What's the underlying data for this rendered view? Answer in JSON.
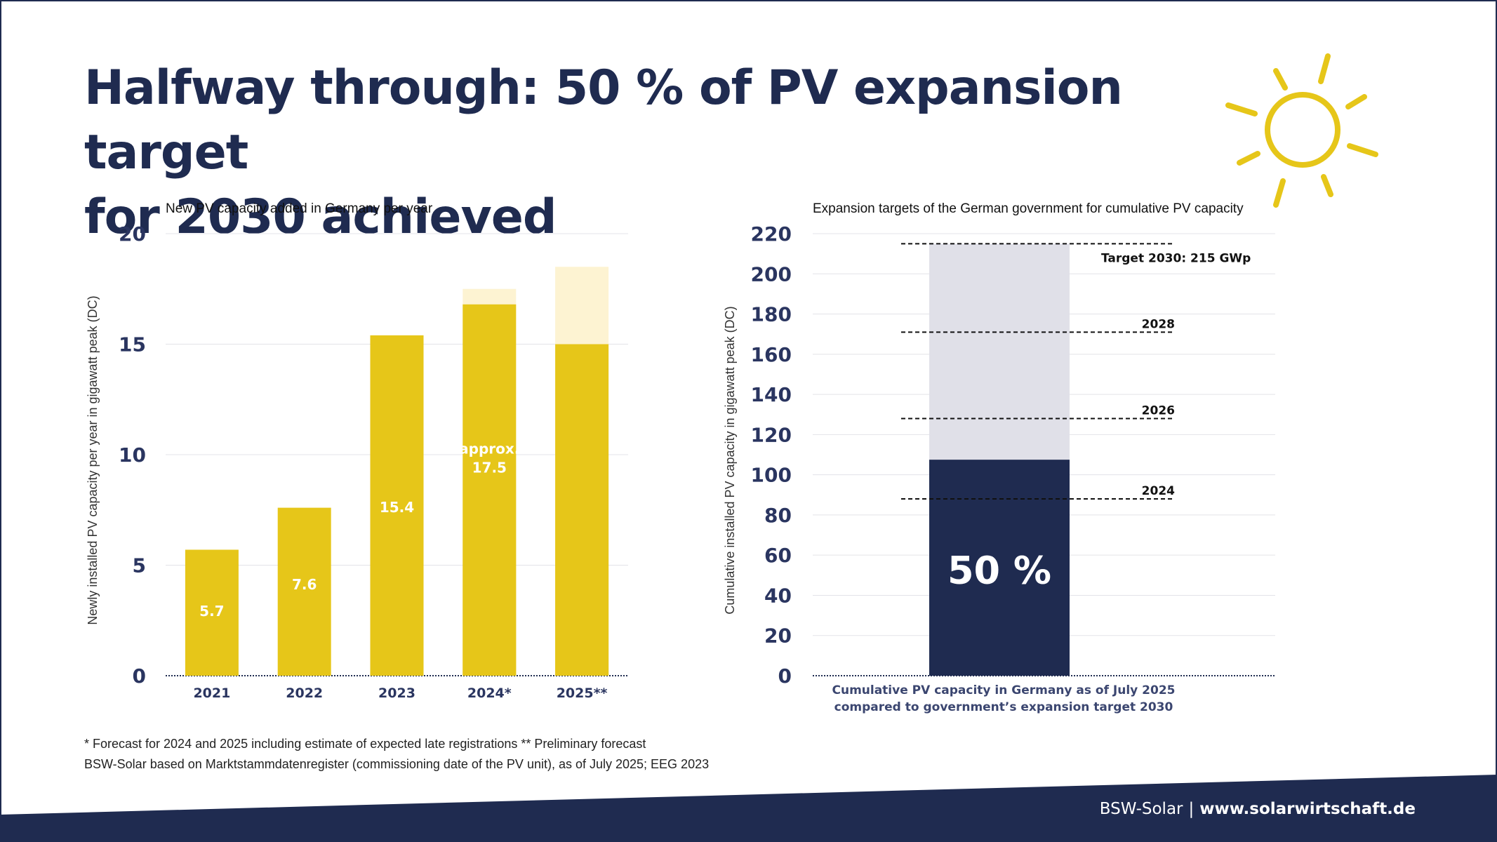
{
  "title": {
    "line1": "Halfway through: 50 % of PV expansion target",
    "line2": "for 2030 achieved"
  },
  "colors": {
    "navy": "#1f2b50",
    "yellow": "#e6c619",
    "light_grey": "#e0e0e8",
    "forecast_fade": "#fdf3d2"
  },
  "chart_data": [
    {
      "type": "bar",
      "title": "New PV capacity added in Germany per year",
      "ylabel": "Newly installed PV capacity per year in gigawatt peak (DC)",
      "xlabel": "",
      "ylim": [
        0,
        20
      ],
      "yticks": [
        0,
        5,
        10,
        15,
        20
      ],
      "grid": true,
      "categories": [
        "2021",
        "2022",
        "2023",
        "2024*",
        "2025**"
      ],
      "values": [
        5.7,
        7.6,
        15.4,
        17.5,
        18.5
      ],
      "solid_values": [
        5.7,
        7.6,
        15.4,
        16.8,
        15.0
      ],
      "data_labels": [
        "5.7",
        "7.6",
        "15.4",
        "approx.\n17.5",
        ""
      ],
      "color": "#e6c619"
    },
    {
      "type": "bar",
      "title": "Expansion targets of the German government for cumulative PV capacity",
      "ylabel": "Cumulative installed PV capacity in gigawatt peak (DC)",
      "ylim": [
        0,
        220
      ],
      "yticks": [
        0,
        20,
        40,
        60,
        80,
        100,
        120,
        140,
        160,
        180,
        200,
        220
      ],
      "grid": true,
      "current_value": 107.5,
      "target_value": 215,
      "center_label": "50 %",
      "target_lines": [
        {
          "label": "Target 2030: 215 GWp",
          "value": 215
        },
        {
          "label": "2028",
          "value": 171
        },
        {
          "label": "2026",
          "value": 128
        },
        {
          "label": "2024",
          "value": 88
        }
      ],
      "caption": [
        "Cumulative PV capacity in Germany as of July 2025",
        "compared to government’s expansion target 2030"
      ]
    }
  ],
  "footnotes": [
    "* Forecast for 2024 and 2025 including estimate of expected late registrations  ** Preliminary forecast",
    "BSW-Solar based on Marktstammdatenregister (commissioning date of the PV unit), as of July 2025; EEG 2023"
  ],
  "footer": {
    "org": "BSW-Solar",
    "separator": "|",
    "url": "www.solarwirtschaft.de"
  }
}
